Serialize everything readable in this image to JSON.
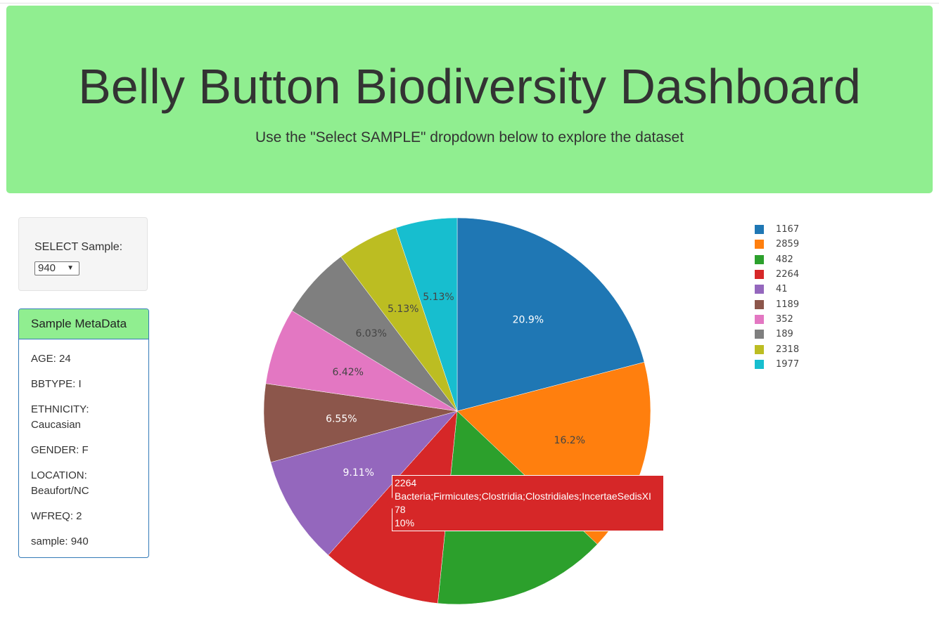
{
  "header": {
    "title": "Belly Button Biodiversity Dashboard",
    "subtitle": "Use the \"Select SAMPLE\" dropdown below to explore the dataset"
  },
  "selector": {
    "label": "SELECT Sample:",
    "value": "940"
  },
  "metadata": {
    "heading": "Sample MetaData",
    "items": [
      "AGE: 24",
      "BBTYPE: I",
      "ETHNICITY: Caucasian",
      "GENDER: F",
      "LOCATION: Beaufort/NC",
      "WFREQ: 2",
      "sample: 940"
    ]
  },
  "colors": {
    "header_bg": "#90ee90",
    "panel_border": "#337ab7"
  },
  "chart_data": {
    "type": "pie",
    "labels": [
      "1167",
      "2859",
      "482",
      "2264",
      "41",
      "1189",
      "352",
      "189",
      "2318",
      "1977"
    ],
    "values": [
      163,
      126,
      113,
      78,
      71,
      51,
      50,
      47,
      40,
      40
    ],
    "percent_labels": [
      "20.9%",
      "16.2%",
      "14.5%",
      "10%",
      "9.11%",
      "6.55%",
      "6.42%",
      "6.03%",
      "5.13%",
      "5.13%"
    ],
    "colors": [
      "#1f77b4",
      "#ff7f0e",
      "#2ca02c",
      "#d62728",
      "#9467bd",
      "#8c564b",
      "#e377c2",
      "#7f7f7f",
      "#bcbd22",
      "#17becf"
    ],
    "legend_position": "top-right",
    "direction": "clockwise",
    "tooltip": {
      "slice": "2264",
      "lines": [
        "2264",
        "Bacteria;Firmicutes;Clostridia;Clostridiales;IncertaeSedisXI",
        "78",
        "10%"
      ]
    }
  }
}
